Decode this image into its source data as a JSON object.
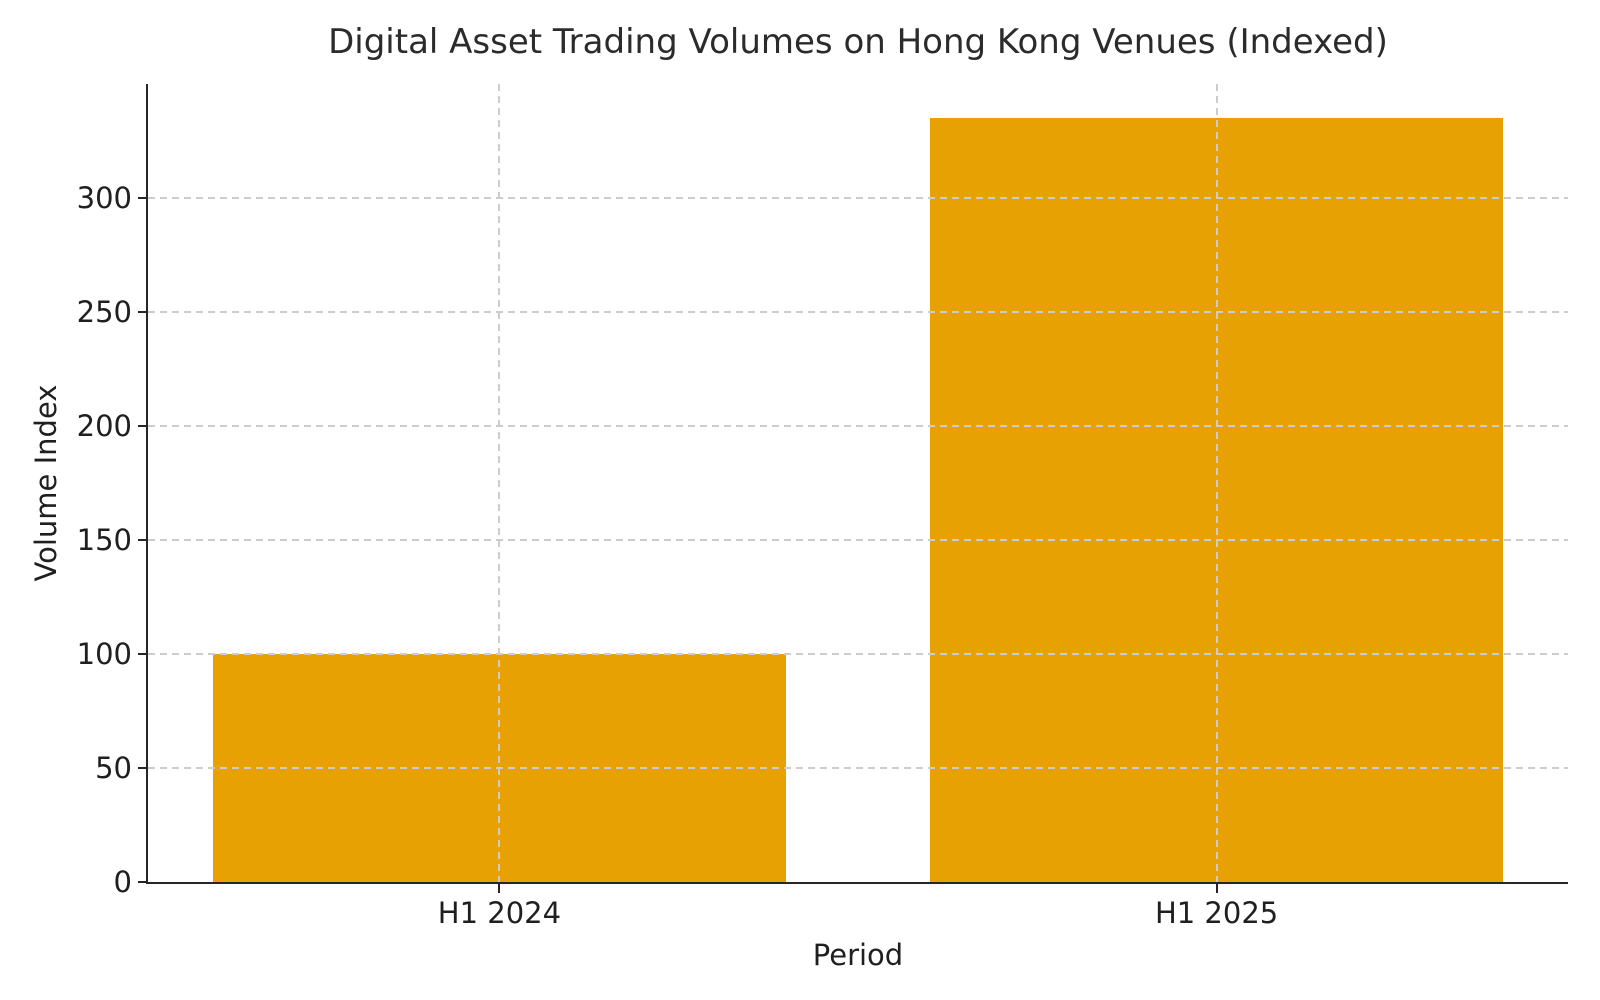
{
  "figure": {
    "background": "#ffffff"
  },
  "chart_data": {
    "type": "bar",
    "title": "Digital Asset Trading Volumes on Hong Kong Venues (Indexed)",
    "xlabel": "Period",
    "ylabel": "Volume Index",
    "categories": [
      "H1 2024",
      "H1 2025"
    ],
    "values": [
      100,
      335
    ],
    "ylim": [
      0,
      350
    ],
    "yticks": [
      0,
      50,
      100,
      150,
      200,
      250,
      300
    ],
    "bar_color": "#E7A102",
    "bar_width_fraction": 0.8,
    "grid": true,
    "grid_color": "#cccccc",
    "grid_style": "dashed",
    "axis_color": "#262626",
    "text_color": "#1f1f1f",
    "legend": "none"
  }
}
